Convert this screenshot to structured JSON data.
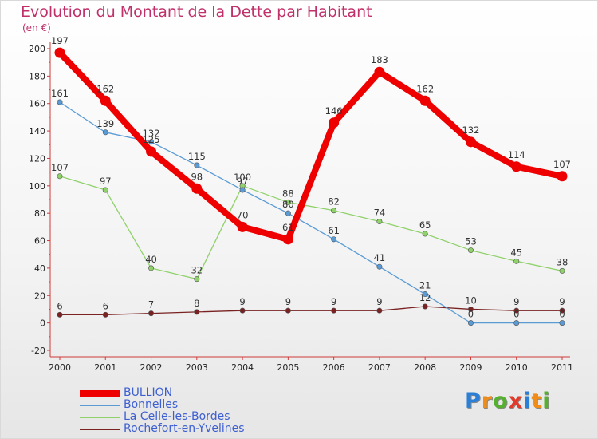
{
  "header": {
    "title": "Evolution du Montant de la Dette par Habitant",
    "unit": "(en €)"
  },
  "logo": {
    "text": "Proxiti",
    "letter_colors": [
      "#2b7fd6",
      "#f08c1a",
      "#55b030",
      "#e23a2a",
      "#2b7fd6",
      "#f08c1a",
      "#55b030"
    ]
  },
  "chart_data": {
    "type": "line",
    "title": "Evolution du Montant de la Dette par Habitant",
    "ylabel": "(en €)",
    "xlabel": "",
    "x": [
      "2000",
      "2001",
      "2002",
      "2003",
      "2004",
      "2005",
      "2006",
      "2007",
      "2008",
      "2009",
      "2010",
      "2011"
    ],
    "ylim": [
      -20,
      200
    ],
    "yticks": [
      -20,
      0,
      20,
      40,
      60,
      80,
      100,
      120,
      140,
      160,
      180,
      200
    ],
    "grid": false,
    "legend": "bottom-left",
    "series": [
      {
        "name": "BULLION",
        "color": "#ee0000",
        "values": [
          197,
          162,
          125,
          98,
          70,
          61,
          146,
          183,
          162,
          132,
          114,
          107
        ],
        "labels": [
          "197",
          "162",
          "125",
          "98",
          "70",
          "61",
          "146",
          "183",
          "162",
          "132",
          "114",
          "107"
        ]
      },
      {
        "name": "Bonnelles",
        "color": "#5b9bd5",
        "values": [
          161,
          139,
          132,
          115,
          97,
          80,
          61,
          41,
          21,
          0,
          0,
          0
        ],
        "labels": [
          "161",
          "139",
          "132",
          "115",
          "97",
          "80",
          "61",
          "41",
          "21",
          "0",
          "0",
          "0"
        ]
      },
      {
        "name": "La Celle-les-Bordes",
        "color": "#8fd16a",
        "values": [
          107,
          97,
          40,
          32,
          100,
          88,
          82,
          74,
          65,
          53,
          45,
          38
        ],
        "labels": [
          "107",
          "97",
          "40",
          "32",
          "100",
          "88",
          "82",
          "74",
          "65",
          "53",
          "45",
          "38"
        ]
      },
      {
        "name": "Rochefort-en-Yvelines",
        "color": "#7a2222",
        "values": [
          6,
          6,
          7,
          8,
          9,
          9,
          9,
          9,
          12,
          10,
          9,
          9
        ],
        "labels": [
          "6",
          "6",
          "7",
          "8",
          "9",
          "9",
          "9",
          "9",
          "12",
          "10",
          "9",
          "9"
        ]
      }
    ]
  }
}
